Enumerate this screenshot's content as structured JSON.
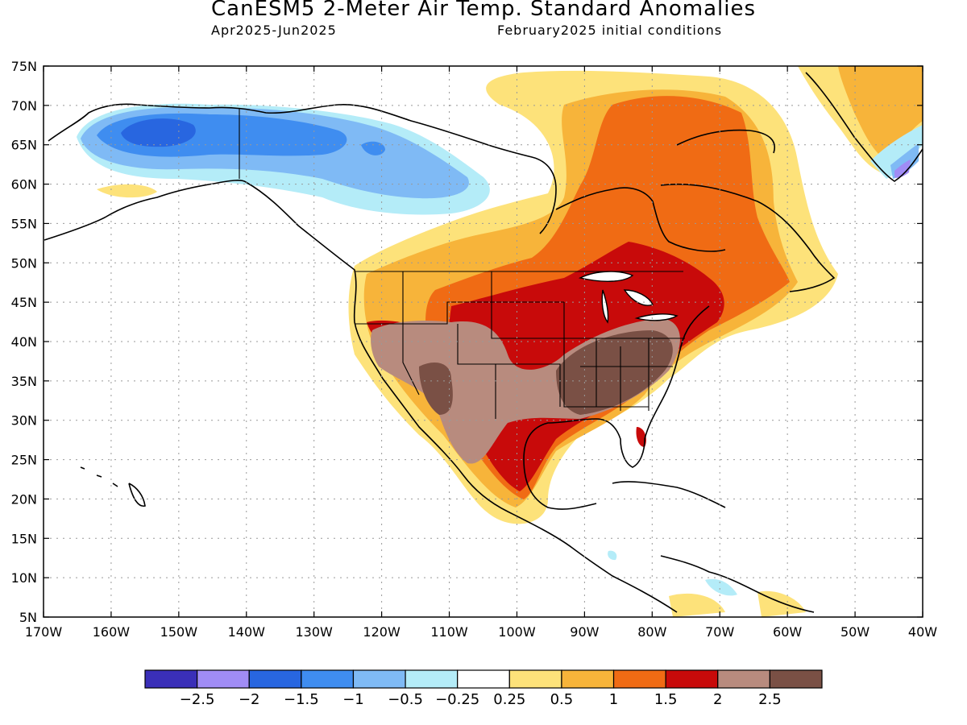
{
  "header": {
    "title": "CanESM5 2-Meter Air Temp. Standard Anomalies",
    "period": "Apr2025-Jun2025",
    "init": "February2025 initial conditions"
  },
  "axes": {
    "lat_labels": [
      "75N",
      "70N",
      "65N",
      "60N",
      "55N",
      "50N",
      "45N",
      "40N",
      "35N",
      "30N",
      "25N",
      "20N",
      "15N",
      "10N",
      "5N"
    ],
    "lon_labels": [
      "170W",
      "160W",
      "150W",
      "140W",
      "130W",
      "120W",
      "110W",
      "100W",
      "90W",
      "80W",
      "70W",
      "60W",
      "50W",
      "40W"
    ]
  },
  "legend": {
    "colors": [
      "#3a2fb8",
      "#a08cf5",
      "#2866e0",
      "#3f8df0",
      "#7fbaf5",
      "#b4ecf8",
      "#ffffff",
      "#fde27a",
      "#f7b43a",
      "#f06b14",
      "#c80a0a",
      "#b88b7e",
      "#7a5045"
    ],
    "labels": [
      "-2.5",
      "-2",
      "-1.5",
      "-1",
      "-0.5",
      "-0.25",
      "0.25",
      "0.5",
      "1",
      "1.5",
      "2",
      "2.5"
    ]
  }
}
